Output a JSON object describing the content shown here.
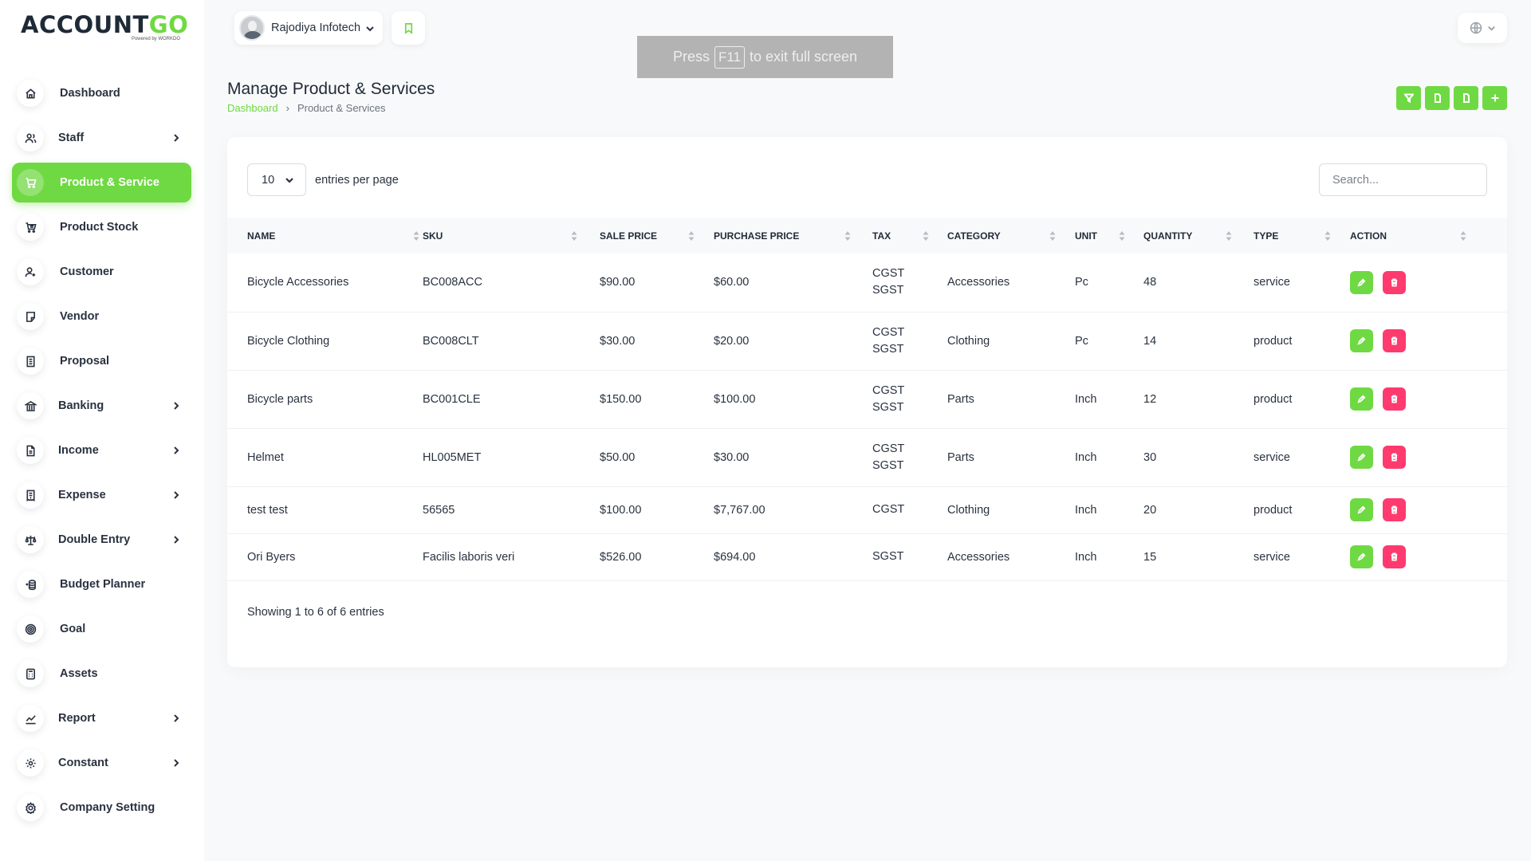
{
  "brand": {
    "logo_main": "ACCOUNT",
    "logo_accent": "GO",
    "logo_sub": "Powered by WORKDO",
    "accent_color": "#6fd943",
    "danger_color": "#ff3a6e"
  },
  "sidebar": {
    "items": [
      {
        "label": "Dashboard",
        "icon": "home-icon",
        "has_submenu": false,
        "active": false
      },
      {
        "label": "Staff",
        "icon": "users-icon",
        "has_submenu": true,
        "active": false
      },
      {
        "label": "Product & Service",
        "icon": "shopping-cart-icon",
        "has_submenu": false,
        "active": true
      },
      {
        "label": "Product Stock",
        "icon": "stock-cart-icon",
        "has_submenu": false,
        "active": false
      },
      {
        "label": "Customer",
        "icon": "user-plus-icon",
        "has_submenu": false,
        "active": false
      },
      {
        "label": "Vendor",
        "icon": "note-icon",
        "has_submenu": false,
        "active": false
      },
      {
        "label": "Proposal",
        "icon": "file-text-icon",
        "has_submenu": false,
        "active": false
      },
      {
        "label": "Banking",
        "icon": "bank-icon",
        "has_submenu": true,
        "active": false
      },
      {
        "label": "Income",
        "icon": "file-invoice-icon",
        "has_submenu": true,
        "active": false
      },
      {
        "label": "Expense",
        "icon": "receipt-icon",
        "has_submenu": true,
        "active": false
      },
      {
        "label": "Double Entry",
        "icon": "scale-icon",
        "has_submenu": true,
        "active": false
      },
      {
        "label": "Budget Planner",
        "icon": "coins-icon",
        "has_submenu": false,
        "active": false
      },
      {
        "label": "Goal",
        "icon": "target-icon",
        "has_submenu": false,
        "active": false
      },
      {
        "label": "Assets",
        "icon": "calculator-icon",
        "has_submenu": false,
        "active": false
      },
      {
        "label": "Report",
        "icon": "chart-line-icon",
        "has_submenu": true,
        "active": false
      },
      {
        "label": "Constant",
        "icon": "gear-icon",
        "has_submenu": true,
        "active": false
      },
      {
        "label": "Company Setting",
        "icon": "settings-icon",
        "has_submenu": false,
        "active": false
      }
    ]
  },
  "header": {
    "company_name": "Rajodiya Infotech",
    "fullscreen_notice": {
      "before": "Press",
      "key": "F11",
      "after": "to exit full screen"
    }
  },
  "page": {
    "title": "Manage Product & Services",
    "breadcrumb": {
      "home": "Dashboard",
      "current": "Product & Services"
    },
    "actions": [
      "filter-icon",
      "export-icon",
      "import-icon",
      "plus-icon"
    ]
  },
  "table": {
    "per_page_value": "10",
    "per_page_label": "entries per page",
    "search_placeholder": "Search...",
    "columns": [
      "Name",
      "SKU",
      "Sale Price",
      "Purchase Price",
      "Tax",
      "Category",
      "Unit",
      "Quantity",
      "Type",
      "Action"
    ],
    "rows": [
      {
        "name": "Bicycle Accessories",
        "sku": "BC008ACC",
        "sale_price": "$90.00",
        "purchase_price": "$60.00",
        "tax": [
          "CGST",
          "SGST"
        ],
        "category": "Accessories",
        "unit": "Pc",
        "quantity": "48",
        "type": "service"
      },
      {
        "name": "Bicycle Clothing",
        "sku": "BC008CLT",
        "sale_price": "$30.00",
        "purchase_price": "$20.00",
        "tax": [
          "CGST",
          "SGST"
        ],
        "category": "Clothing",
        "unit": "Pc",
        "quantity": "14",
        "type": "product"
      },
      {
        "name": "Bicycle parts",
        "sku": "BC001CLE",
        "sale_price": "$150.00",
        "purchase_price": "$100.00",
        "tax": [
          "CGST",
          "SGST"
        ],
        "category": "Parts",
        "unit": "Inch",
        "quantity": "12",
        "type": "product"
      },
      {
        "name": "Helmet",
        "sku": "HL005MET",
        "sale_price": "$50.00",
        "purchase_price": "$30.00",
        "tax": [
          "CGST",
          "SGST"
        ],
        "category": "Parts",
        "unit": "Inch",
        "quantity": "30",
        "type": "service"
      },
      {
        "name": "test test",
        "sku": "56565",
        "sale_price": "$100.00",
        "purchase_price": "$7,767.00",
        "tax": [
          "CGST"
        ],
        "category": "Clothing",
        "unit": "Inch",
        "quantity": "20",
        "type": "product"
      },
      {
        "name": "Ori Byers",
        "sku": "Facilis laboris veri",
        "sale_price": "$526.00",
        "purchase_price": "$694.00",
        "tax": [
          "SGST"
        ],
        "category": "Accessories",
        "unit": "Inch",
        "quantity": "15",
        "type": "service"
      }
    ],
    "footer_text": "Showing 1 to 6 of 6 entries"
  }
}
